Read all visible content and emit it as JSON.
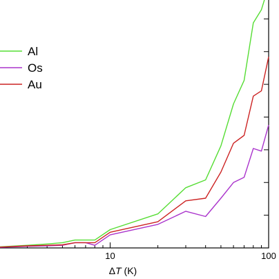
{
  "chart_data": {
    "type": "line",
    "xscale": "log",
    "xlim": [
      1,
      100
    ],
    "ylim": [
      0,
      1
    ],
    "xticks": [
      1,
      10,
      100
    ],
    "x_tick_labels": [
      "",
      "10",
      "100"
    ],
    "y_tick_count": 7,
    "xlabel_prefix": "Δ",
    "xlabel_var": "T",
    "xlabel_unit": " (K)",
    "legend": "top-left",
    "grid": false,
    "x": [
      1,
      2,
      3,
      4,
      5,
      6,
      7,
      8,
      10,
      20,
      30,
      40,
      50,
      60,
      70,
      80,
      90,
      100
    ],
    "series": [
      {
        "name": "Al",
        "color": "#55dd33",
        "values": [
          0.001,
          0.004,
          0.01,
          0.015,
          0.02,
          0.03,
          0.03,
          0.03,
          0.07,
          0.13,
          0.23,
          0.26,
          0.39,
          0.55,
          0.64,
          0.86,
          0.91,
          1.0
        ]
      },
      {
        "name": "Os",
        "color": "#aa33cc",
        "values": [
          0.001,
          0.002,
          0.006,
          0.008,
          0.01,
          0.02,
          0.02,
          0.01,
          0.05,
          0.09,
          0.14,
          0.12,
          0.19,
          0.25,
          0.27,
          0.38,
          0.37,
          0.47
        ]
      },
      {
        "name": "Au",
        "color": "#cc2222",
        "values": [
          0.001,
          0.003,
          0.008,
          0.01,
          0.012,
          0.02,
          0.02,
          0.02,
          0.06,
          0.1,
          0.18,
          0.19,
          0.29,
          0.4,
          0.43,
          0.58,
          0.6,
          0.73
        ]
      }
    ]
  }
}
